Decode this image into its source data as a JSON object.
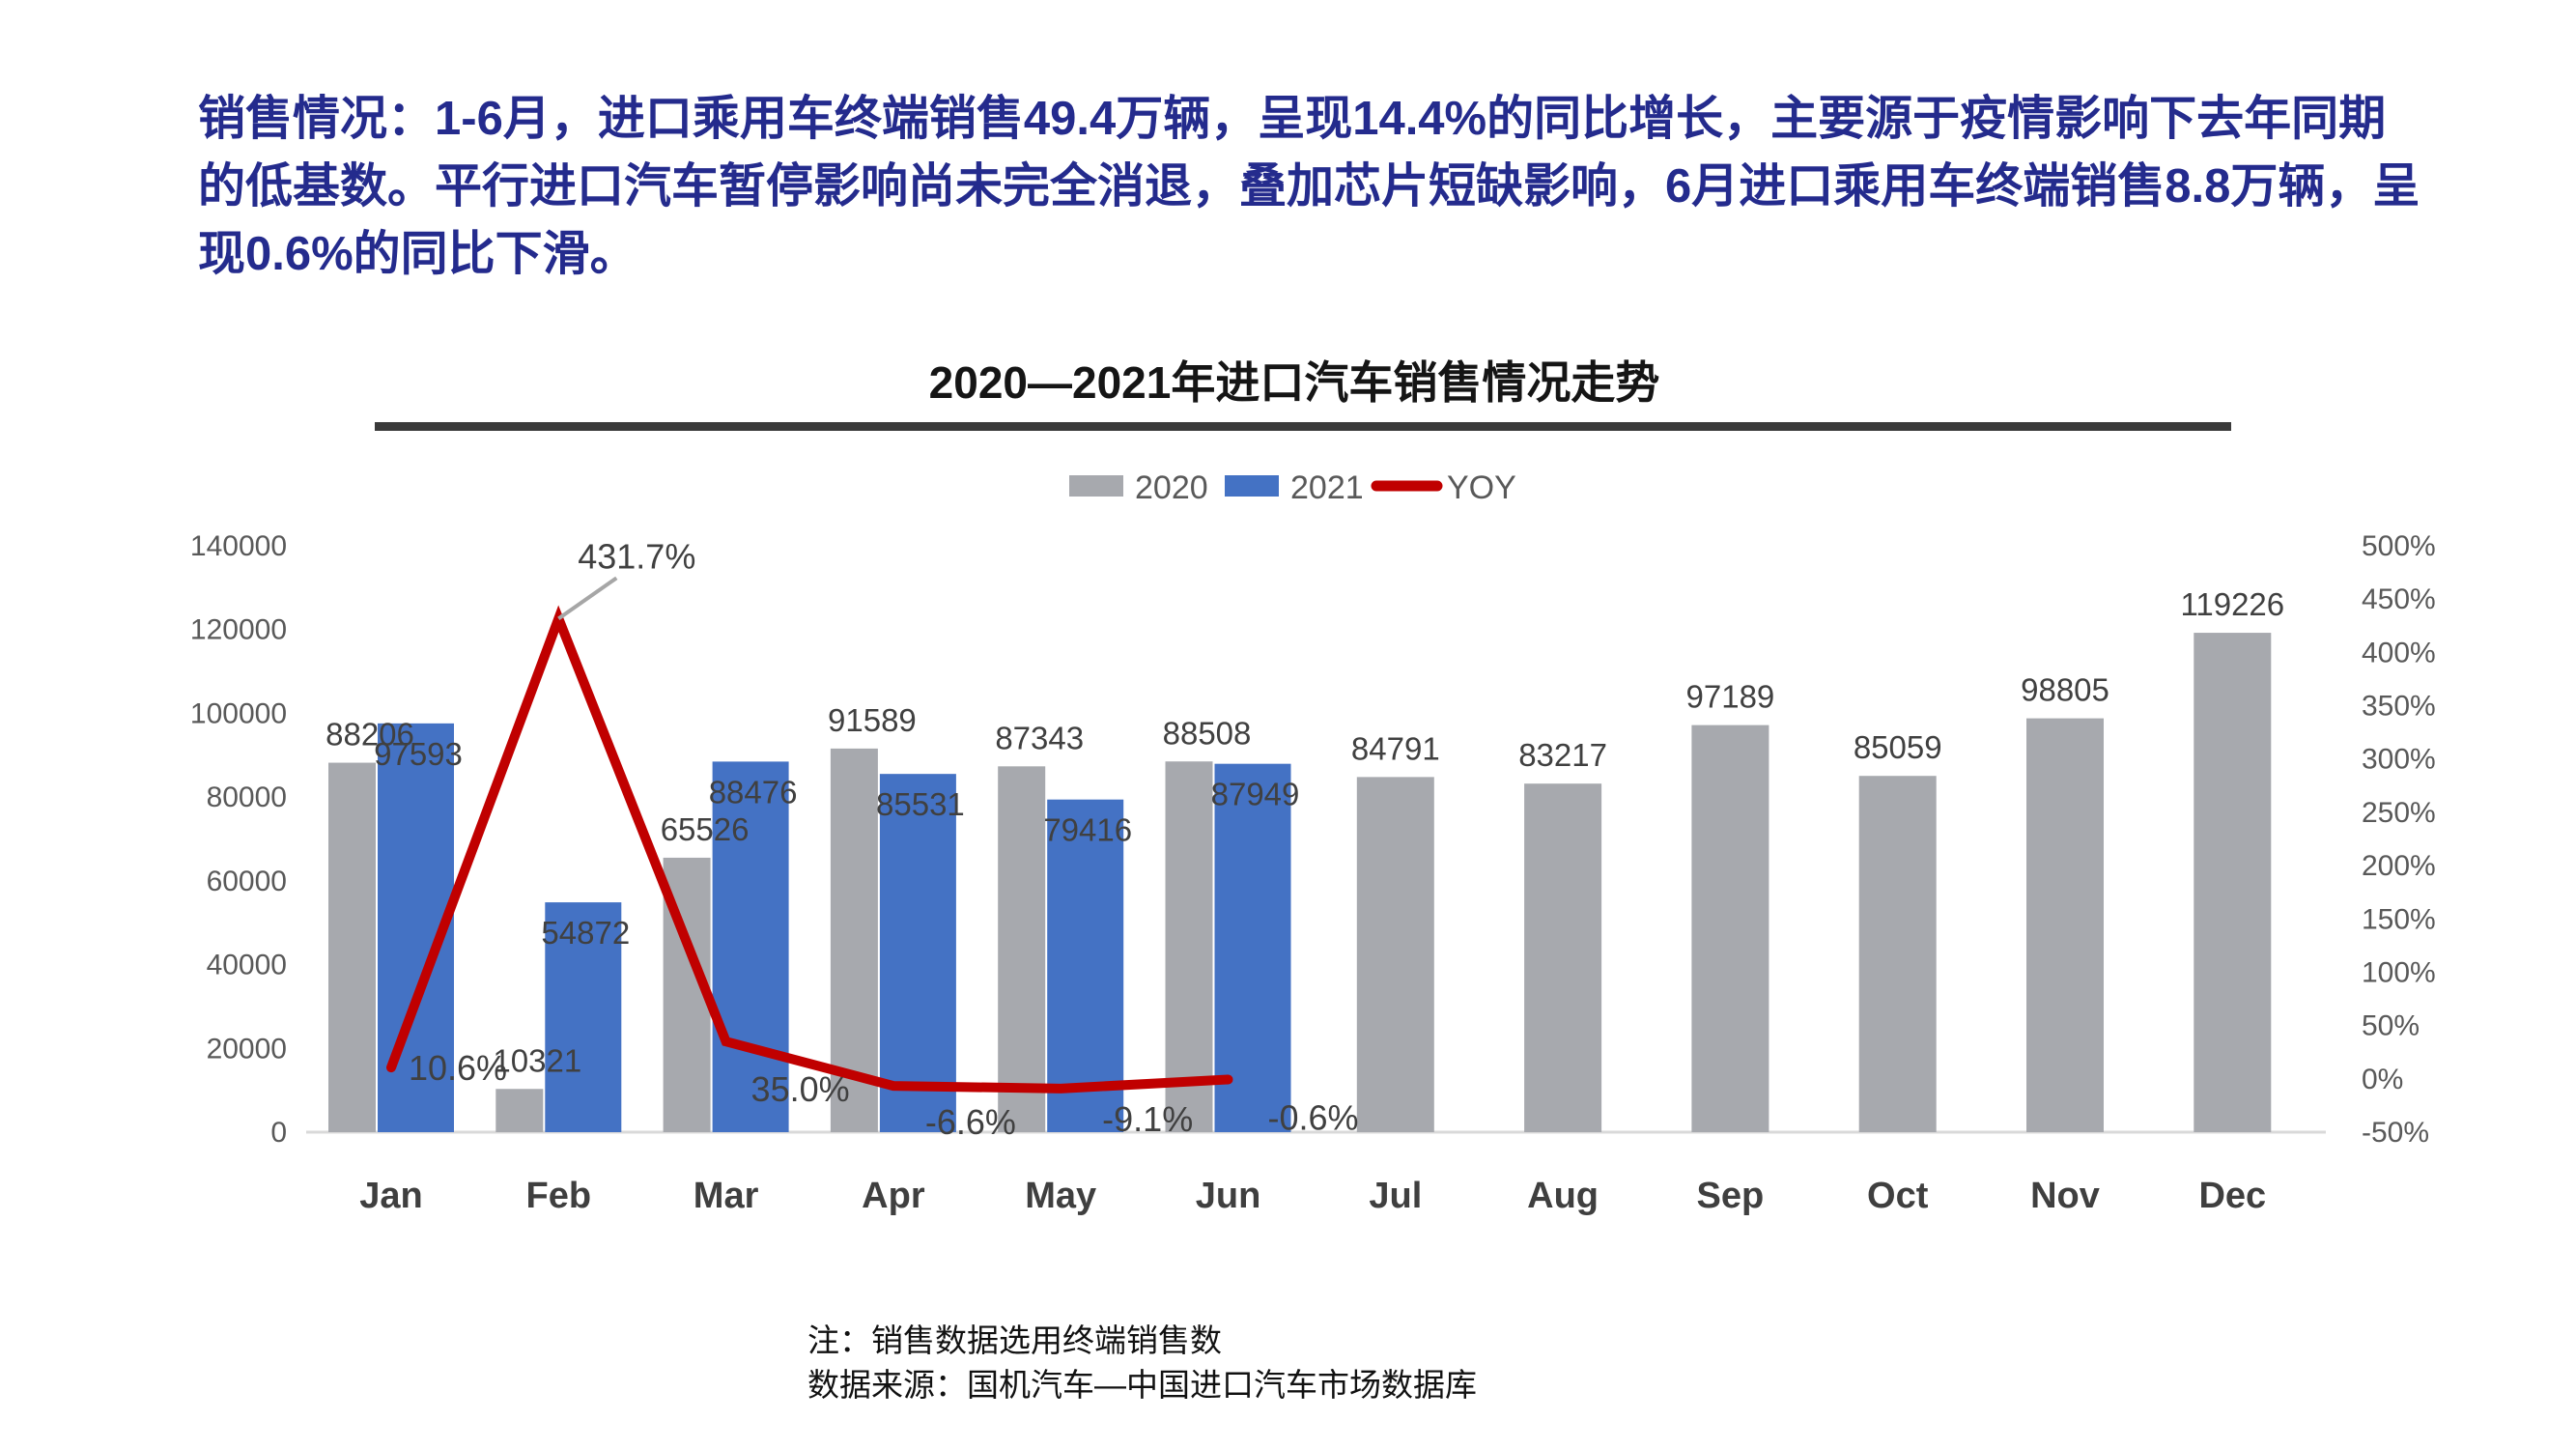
{
  "header": {
    "text": "销售情况：1-6月，进口乘用车终端销售49.4万辆，呈现14.4%的同比增长，主要源于疫情影响下去年同期的低基数。平行进口汽车暂停影响尚未完全消退，叠加芯片短缺影响，6月进口乘用车终端销售8.8万辆，呈现0.6%的同比下滑。"
  },
  "chart_data": {
    "type": "bar",
    "subtype": "grouped-bar-with-line-combo",
    "title": "2020—2021年进口汽车销售情况走势",
    "grid": "off",
    "legend_position": "top-center",
    "categories": [
      "Jan",
      "Feb",
      "Mar",
      "Apr",
      "May",
      "Jun",
      "Jul",
      "Aug",
      "Sep",
      "Oct",
      "Nov",
      "Dec"
    ],
    "series": [
      {
        "name": "2020",
        "type": "bar",
        "axis": "left",
        "color": "#A7A9AE",
        "values": [
          88206,
          10321,
          65526,
          91589,
          87343,
          88508,
          84791,
          83217,
          97189,
          85059,
          98805,
          119226
        ]
      },
      {
        "name": "2021",
        "type": "bar",
        "axis": "left",
        "color": "#4472C4",
        "values": [
          97593,
          54872,
          88476,
          85531,
          79416,
          87949,
          null,
          null,
          null,
          null,
          null,
          null
        ]
      },
      {
        "name": "YOY",
        "type": "line",
        "axis": "right",
        "color": "#C00000",
        "values": [
          10.6,
          431.7,
          35.0,
          -6.6,
          -9.1,
          -0.6,
          null,
          null,
          null,
          null,
          null,
          null
        ],
        "labels": [
          "10.6%",
          "431.7%",
          "35.0%",
          "-6.6%",
          "-9.1%",
          "-0.6%"
        ]
      }
    ],
    "left_axis": {
      "min": 0,
      "max": 140000,
      "step": 20000,
      "ticks": [
        "140000",
        "120000",
        "100000",
        "80000",
        "60000",
        "40000",
        "20000",
        "0"
      ]
    },
    "right_axis": {
      "min": -50,
      "max": 500,
      "step": 50,
      "ticks": [
        "500%",
        "450%",
        "400%",
        "350%",
        "300%",
        "250%",
        "200%",
        "150%",
        "100%",
        "50%",
        "0%",
        "-50%"
      ]
    },
    "legend": [
      {
        "label": "2020",
        "color": "#A7A9AE",
        "shape": "rect"
      },
      {
        "label": "2021",
        "color": "#4472C4",
        "shape": "rect"
      },
      {
        "label": "YOY",
        "color": "#C00000",
        "shape": "line"
      }
    ],
    "colors": {
      "data_label": "#404040",
      "axis_label": "#595959",
      "month_label": "#3F3F3F",
      "baseline": "#D9D9D9",
      "title": "#151515",
      "title_rule": "#3A3A3A",
      "leader_line": "#A6A6A6"
    }
  },
  "footer": {
    "note1": "注：销售数据选用终端销售数",
    "note2": "数据来源：国机汽车—中国进口汽车市场数据库"
  }
}
